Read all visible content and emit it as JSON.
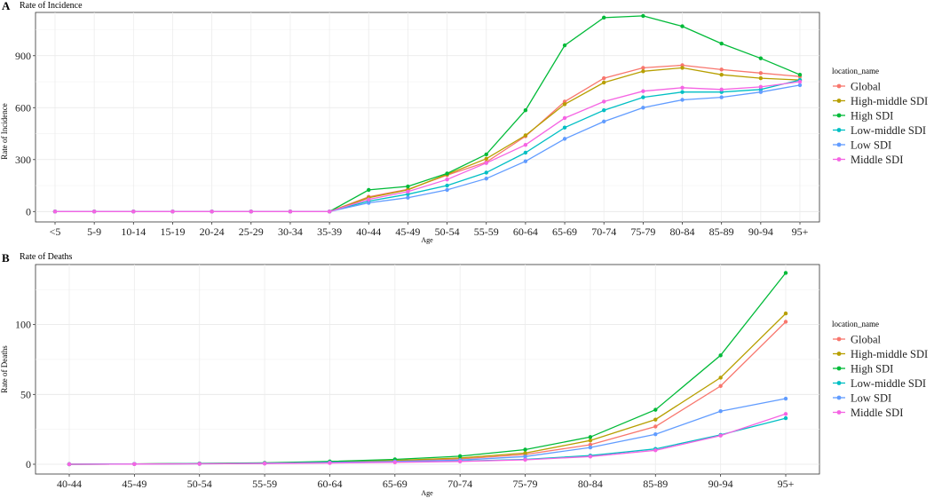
{
  "legend_title": "location_name",
  "chart_data": [
    {
      "panel_label": "A",
      "type": "line",
      "title": "Rate of Incidence",
      "xlabel": "Age",
      "ylabel": "Rate of Incidence",
      "categories": [
        "<5",
        "5-9",
        "10-14",
        "15-19",
        "20-24",
        "25-29",
        "30-34",
        "35-39",
        "40-44",
        "45-49",
        "50-54",
        "55-59",
        "60-64",
        "65-69",
        "70-74",
        "75-79",
        "80-84",
        "85-89",
        "90-94",
        "95+"
      ],
      "ylim": [
        -60,
        1150
      ],
      "yticks": [
        0,
        300,
        600,
        900
      ],
      "grid": true,
      "legend_position": "right",
      "series": [
        {
          "name": "Global",
          "color": "#F8766D",
          "values": [
            0,
            0,
            0,
            0,
            0,
            0,
            0,
            0,
            85,
            128,
            210,
            285,
            435,
            635,
            770,
            830,
            845,
            820,
            800,
            780
          ]
        },
        {
          "name": "High-middle SDI",
          "color": "#B79F00",
          "values": [
            0,
            0,
            0,
            0,
            0,
            0,
            0,
            0,
            80,
            125,
            215,
            305,
            440,
            620,
            745,
            810,
            830,
            790,
            770,
            760
          ]
        },
        {
          "name": "High SDI",
          "color": "#00BA38",
          "values": [
            0,
            0,
            0,
            0,
            0,
            0,
            0,
            0,
            125,
            145,
            220,
            330,
            585,
            960,
            1120,
            1130,
            1070,
            970,
            885,
            790
          ]
        },
        {
          "name": "Low-middle SDI",
          "color": "#00BFC4",
          "values": [
            0,
            0,
            0,
            0,
            0,
            0,
            0,
            0,
            60,
            100,
            150,
            225,
            340,
            485,
            585,
            660,
            690,
            690,
            705,
            760
          ]
        },
        {
          "name": "Low SDI",
          "color": "#619CFF",
          "values": [
            0,
            0,
            0,
            0,
            0,
            0,
            0,
            0,
            50,
            80,
            125,
            190,
            290,
            420,
            520,
            600,
            645,
            660,
            690,
            730
          ]
        },
        {
          "name": "Middle SDI",
          "color": "#F564E3",
          "values": [
            0,
            0,
            0,
            0,
            0,
            0,
            0,
            0,
            70,
            115,
            185,
            280,
            385,
            540,
            635,
            695,
            715,
            705,
            720,
            750
          ]
        }
      ]
    },
    {
      "panel_label": "B",
      "type": "line",
      "title": "Rate of Deaths",
      "xlabel": "Age",
      "ylabel": "Rate of Deaths",
      "categories": [
        "40-44",
        "45-49",
        "50-54",
        "55-59",
        "60-64",
        "65-69",
        "70-74",
        "75-79",
        "80-84",
        "85-89",
        "90-94",
        "95+"
      ],
      "ylim": [
        -7,
        143
      ],
      "yticks": [
        0,
        50,
        100
      ],
      "grid": true,
      "legend_position": "right",
      "series": [
        {
          "name": "Global",
          "color": "#F8766D",
          "values": [
            0,
            0.2,
            0.4,
            0.8,
            1.5,
            2.4,
            3.8,
            7,
            14,
            27,
            56,
            102
          ]
        },
        {
          "name": "High-middle SDI",
          "color": "#B79F00",
          "values": [
            0,
            0.2,
            0.5,
            0.9,
            1.7,
            2.8,
            4.5,
            8,
            17,
            32,
            62,
            108
          ]
        },
        {
          "name": "High SDI",
          "color": "#00BA38",
          "values": [
            0,
            0.2,
            0.6,
            1,
            2,
            3.5,
            5.8,
            10.5,
            19.5,
            39,
            78,
            137
          ]
        },
        {
          "name": "Low-middle SDI",
          "color": "#00BFC4",
          "values": [
            0,
            0.2,
            0.3,
            0.6,
            1.1,
            1.6,
            2.2,
            3.5,
            6.2,
            11,
            21,
            33
          ]
        },
        {
          "name": "Low SDI",
          "color": "#619CFF",
          "values": [
            0,
            0.2,
            0.4,
            0.7,
            1.3,
            2,
            3,
            5.5,
            12,
            21.5,
            38,
            47
          ]
        },
        {
          "name": "Middle SDI",
          "color": "#F564E3",
          "values": [
            0,
            0.1,
            0.3,
            0.5,
            0.9,
            1.4,
            2,
            3.2,
            5.5,
            10,
            20.5,
            36
          ]
        }
      ]
    }
  ]
}
